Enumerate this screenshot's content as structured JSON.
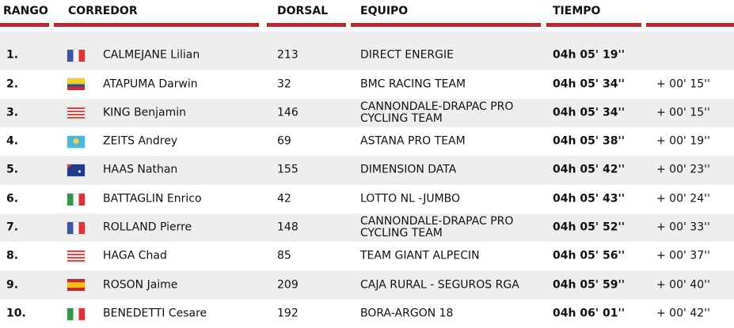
{
  "table": {
    "headers": [
      "RANGO",
      "CORREDOR",
      "DORSAL",
      "EQUIPO",
      "TIEMPO"
    ],
    "rows": [
      [
        "1.",
        "CALMEJANE Lilian",
        "213",
        "DIRECT ENERGIE",
        "04h 05' 19''",
        null
      ],
      [
        "2.",
        "ATAPUMA Darwin",
        "32",
        "BMC RACING TEAM",
        "04h 05' 34''",
        "+ 00' 15''"
      ],
      [
        "3.",
        "KING Benjamin",
        "146",
        "CANNONDALE-DRAPAC PRO CYCLING TEAM",
        "04h 05' 34''",
        "+ 00' 15''"
      ],
      [
        "4.",
        "ZEITS Andrey",
        "69",
        "ASTANA PRO TEAM",
        "04h 05' 38''",
        "+ 00' 19''"
      ],
      [
        "5.",
        "HAAS Nathan",
        "155",
        "DIMENSION DATA",
        "04h 05' 42''",
        "+ 00' 23''"
      ],
      [
        "6.",
        "BATTAGLIN Enrico",
        "42",
        "LOTTO NL -JUMBO",
        "04h 05' 43''",
        "+ 00' 24''"
      ],
      [
        "7.",
        "ROLLAND Pierre",
        "148",
        "CANNONDALE-DRAPAC PRO CYCLING TEAM",
        "04h 05' 52''",
        "+ 00' 33''"
      ],
      [
        "8.",
        "HAGA Chad",
        "85",
        "TEAM GIANT ALPECIN",
        "04h 05' 56''",
        "+ 00' 37''"
      ],
      [
        "9.",
        "ROSON Jaime",
        "209",
        "CAJA RURAL - SEGUROS RGA",
        "04h 05' 59''",
        "+ 00' 40''"
      ],
      [
        "10.",
        "BENEDETTI Cesare",
        "192",
        "BORA-ARGON 18",
        "04h 06' 01''",
        "+ 00' 42''"
      ]
    ]
  }
}
